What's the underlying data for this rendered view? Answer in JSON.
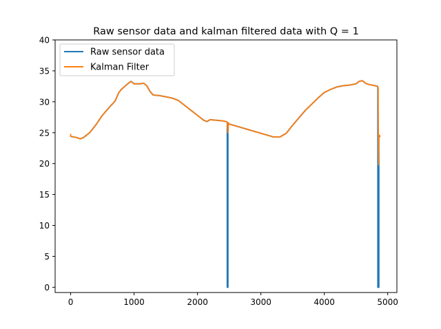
{
  "chart_data": {
    "type": "line",
    "title": "Raw sensor data and kalman filtered data with Q = 1",
    "xlabel": "",
    "ylabel": "",
    "xlim": [
      -245,
      5145
    ],
    "ylim": [
      -0.85,
      40
    ],
    "xticks": [
      0,
      1000,
      2000,
      3000,
      4000,
      5000
    ],
    "xtick_labels": [
      "0",
      "1000",
      "2000",
      "3000",
      "4000",
      "5000"
    ],
    "yticks": [
      0,
      5,
      10,
      15,
      20,
      25,
      30,
      35,
      40
    ],
    "ytick_labels": [
      "0",
      "5",
      "10",
      "15",
      "20",
      "25",
      "30",
      "35",
      "40"
    ],
    "grid": false,
    "legend_position": "upper-left",
    "colors": {
      "raw": "#1f77b4",
      "kalman": "#ff7f0e"
    },
    "series": [
      {
        "name": "Raw sensor data",
        "x": [
          0,
          100,
          150,
          200,
          300,
          400,
          500,
          600,
          700,
          760,
          800,
          900,
          950,
          1000,
          1100,
          1150,
          1200,
          1250,
          1300,
          1400,
          1500,
          1600,
          1700,
          1800,
          1900,
          2000,
          2100,
          2150,
          2200,
          2300,
          2400,
          2450,
          2470,
          2470,
          2480,
          2480,
          2500,
          2600,
          2700,
          2800,
          2900,
          3000,
          3100,
          3200,
          3300,
          3400,
          3500,
          3600,
          3700,
          3800,
          3900,
          4000,
          4100,
          4200,
          4300,
          4400,
          4500,
          4550,
          4600,
          4650,
          4700,
          4800,
          4840,
          4845,
          4845,
          4860,
          4860,
          4870,
          4880
        ],
        "y": [
          24.4,
          24.2,
          24.0,
          24.2,
          25.0,
          26.3,
          27.8,
          29.0,
          30.1,
          31.5,
          32.0,
          32.9,
          33.3,
          32.9,
          32.9,
          33.0,
          32.6,
          31.7,
          31.1,
          31.0,
          30.8,
          30.6,
          30.2,
          29.4,
          28.6,
          27.8,
          27.0,
          26.8,
          27.1,
          27.0,
          26.9,
          26.8,
          26.7,
          0.0,
          0.0,
          26.6,
          26.4,
          26.1,
          25.8,
          25.5,
          25.2,
          24.9,
          24.6,
          24.3,
          24.3,
          24.9,
          26.2,
          27.4,
          28.6,
          29.6,
          30.6,
          31.5,
          32.0,
          32.4,
          32.6,
          32.7,
          32.9,
          33.3,
          33.4,
          33.0,
          32.8,
          32.6,
          32.5,
          32.3,
          0.0,
          0.0,
          24.5,
          24.4,
          24.3
        ]
      },
      {
        "name": "Kalman Filter",
        "x": [
          0,
          0,
          100,
          150,
          200,
          300,
          400,
          500,
          600,
          700,
          760,
          800,
          900,
          950,
          1000,
          1100,
          1150,
          1200,
          1250,
          1300,
          1400,
          1500,
          1600,
          1700,
          1800,
          1900,
          2000,
          2100,
          2150,
          2200,
          2300,
          2400,
          2450,
          2470,
          2480,
          2490,
          2500,
          2600,
          2700,
          2800,
          2900,
          3000,
          3100,
          3200,
          3300,
          3400,
          3500,
          3600,
          3700,
          3800,
          3900,
          4000,
          4100,
          4200,
          4300,
          4400,
          4500,
          4550,
          4600,
          4650,
          4700,
          4800,
          4840,
          4850,
          4855,
          4860,
          4870,
          4880
        ],
        "y": [
          24.8,
          24.4,
          24.2,
          24.0,
          24.2,
          25.0,
          26.3,
          27.8,
          29.0,
          30.1,
          31.5,
          32.0,
          32.9,
          33.3,
          32.9,
          32.9,
          33.0,
          32.6,
          31.7,
          31.1,
          31.0,
          30.8,
          30.6,
          30.2,
          29.4,
          28.6,
          27.8,
          27.0,
          26.8,
          27.1,
          27.0,
          26.9,
          26.8,
          26.7,
          25.0,
          26.5,
          26.4,
          26.1,
          25.8,
          25.5,
          25.2,
          24.9,
          24.6,
          24.3,
          24.3,
          24.9,
          26.2,
          27.4,
          28.6,
          29.6,
          30.6,
          31.5,
          32.0,
          32.4,
          32.6,
          32.7,
          32.9,
          33.3,
          33.4,
          33.0,
          32.8,
          32.6,
          32.5,
          32.3,
          19.8,
          24.0,
          24.6,
          24.4
        ]
      }
    ]
  }
}
